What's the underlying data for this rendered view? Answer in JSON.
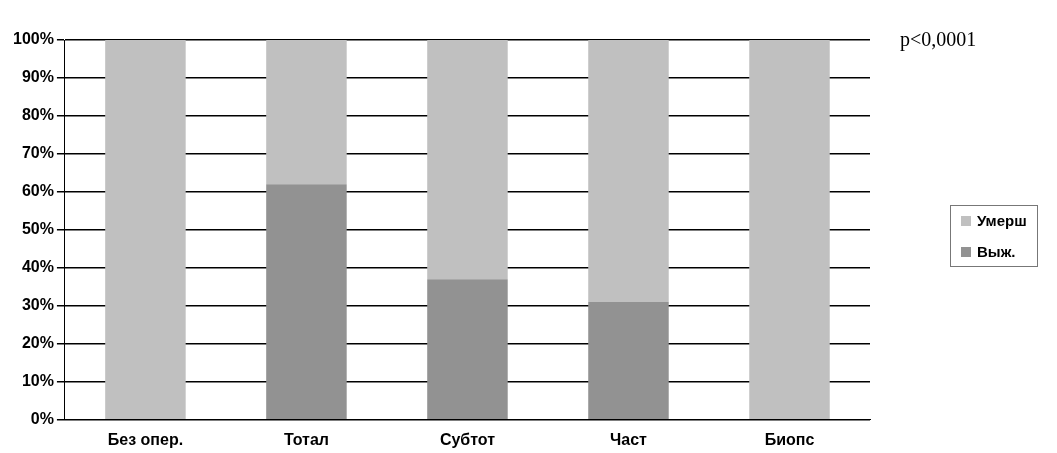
{
  "chart_data": {
    "type": "bar",
    "stacked": true,
    "categories": [
      "Без опер.",
      "Тотал",
      "Субтот",
      "Част",
      "Биопс"
    ],
    "series": [
      {
        "name": "Выж.",
        "color": "#929292",
        "values": [
          0,
          62,
          37,
          31,
          0
        ]
      },
      {
        "name": "Умерш",
        "color": "#c0c0c0",
        "values": [
          100,
          38,
          63,
          69,
          100
        ]
      }
    ],
    "ylim": [
      0,
      100
    ],
    "yticks": [
      {
        "value": 0,
        "label": "0%"
      },
      {
        "value": 10,
        "label": "10%"
      },
      {
        "value": 20,
        "label": "20%"
      },
      {
        "value": 30,
        "label": "30%"
      },
      {
        "value": 40,
        "label": "40%"
      },
      {
        "value": 50,
        "label": "50%"
      },
      {
        "value": 60,
        "label": "60%"
      },
      {
        "value": 70,
        "label": "70%"
      },
      {
        "value": 80,
        "label": "80%"
      },
      {
        "value": 90,
        "label": "90%"
      },
      {
        "value": 100,
        "label": "100%"
      }
    ],
    "grid": "y",
    "legend": "right",
    "annotations": [
      "p<0,0001"
    ]
  }
}
